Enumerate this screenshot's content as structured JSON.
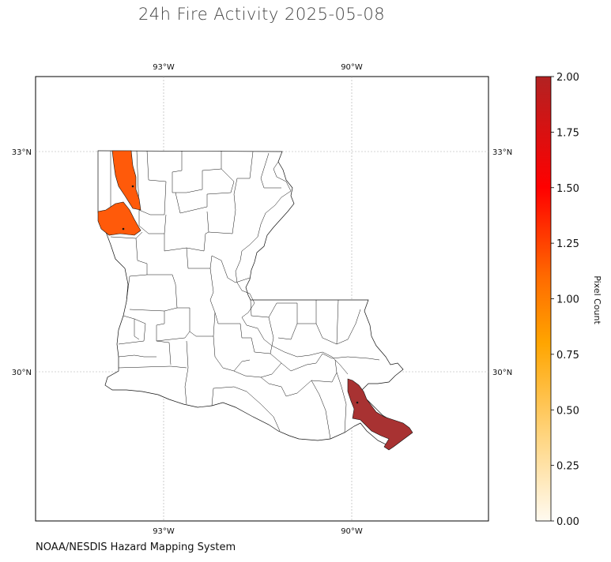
{
  "map": {
    "title": "24h Fire Activity 2025-05-08",
    "credit": "NOAA/NESDIS Hazard Mapping System",
    "lon_labels": [
      "93°W",
      "90°W"
    ],
    "lat_labels": [
      "33°N",
      "30°N"
    ],
    "region": "Louisiana",
    "colors": {
      "low": "#ff5a0a",
      "high": "#a83232",
      "border": "#111111",
      "grid": "#aaaaaa"
    }
  },
  "colorbar": {
    "label": "Pixel Count",
    "ticks": [
      "2.00",
      "1.75",
      "1.50",
      "1.25",
      "1.00",
      "0.75",
      "0.50",
      "0.25",
      "0.00"
    ],
    "colors": [
      "#fff9e6",
      "#ffd27a",
      "#ffa500",
      "#ff6a00",
      "#ff0000",
      "#b22222"
    ]
  },
  "chart_data": {
    "type": "heatmap",
    "title": "24h Fire Activity 2025-05-08",
    "colorbar_label": "Pixel Count",
    "vmin": 0,
    "vmax": 2,
    "regions": [
      {
        "value": 1
      },
      {
        "value": 1
      },
      {
        "value": 2
      }
    ]
  }
}
